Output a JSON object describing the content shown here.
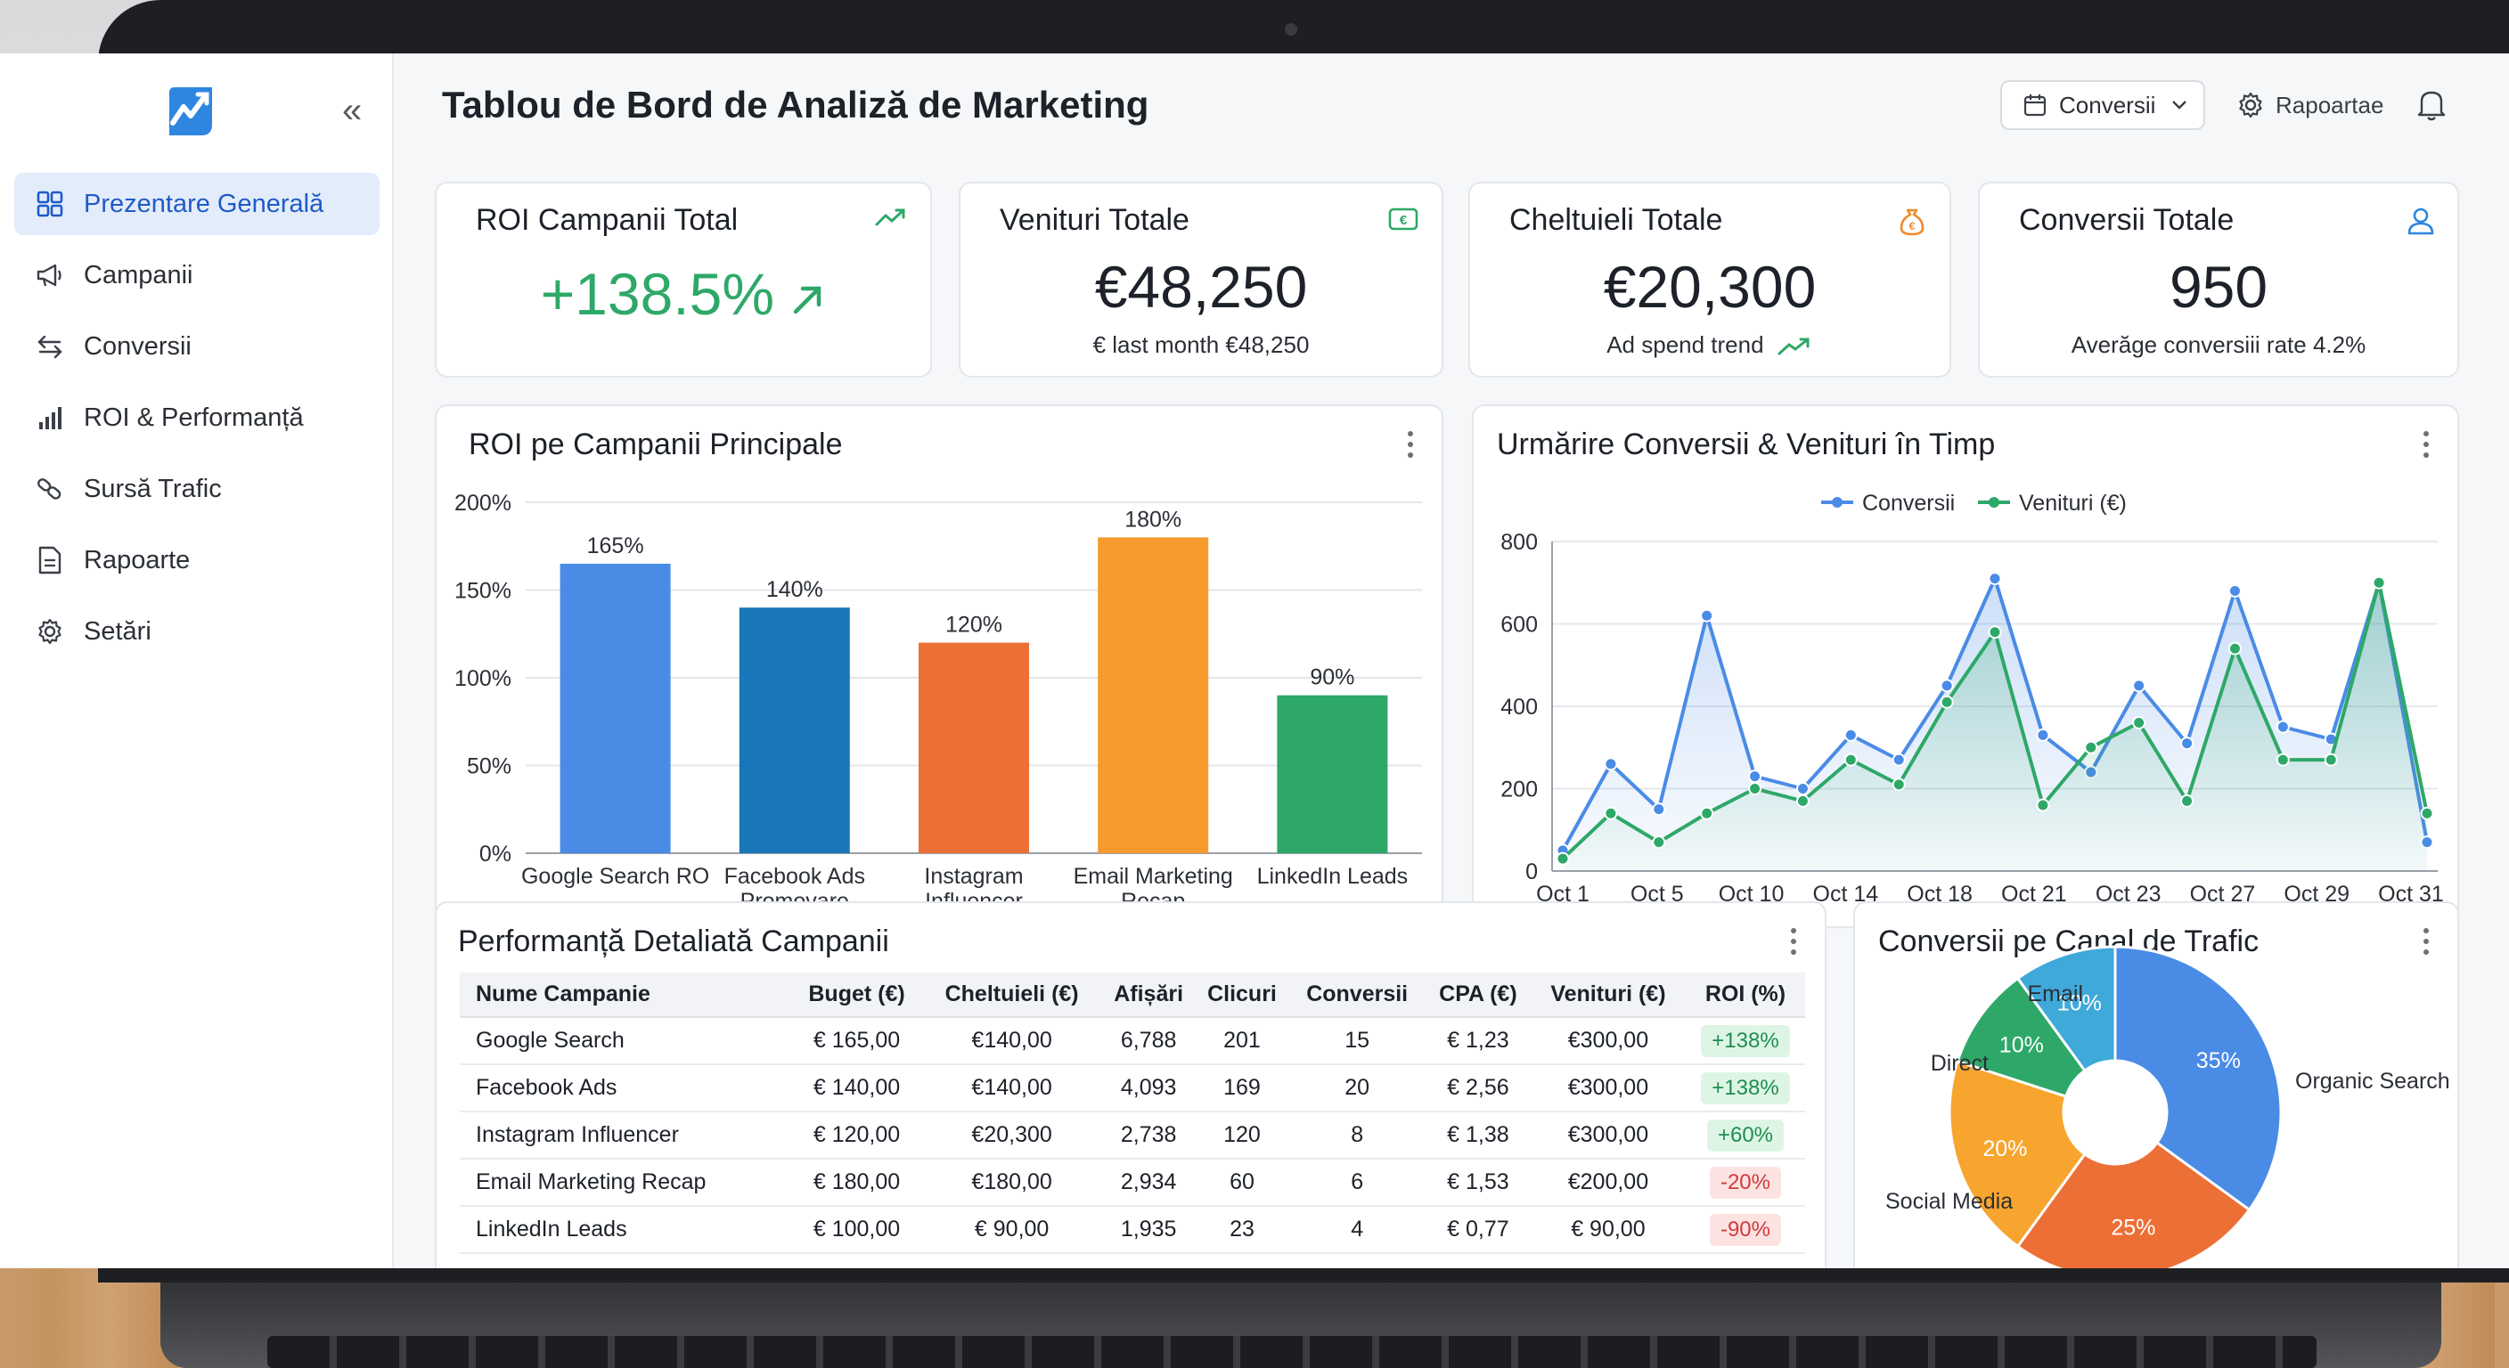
{
  "app": {
    "title": "Tablou de Bord de Analiză de Marketing",
    "filter_dropdown": "Conversii",
    "reports_button": "Rapoartae"
  },
  "sidebar": {
    "items": [
      {
        "label": "Prezentare Generală",
        "icon": "grid-icon",
        "active": true
      },
      {
        "label": "Campanii",
        "icon": "megaphone-icon",
        "active": false
      },
      {
        "label": "Conversii",
        "icon": "arrows-icon",
        "active": false
      },
      {
        "label": "ROI & Performanță",
        "icon": "bar-chart-icon",
        "active": false
      },
      {
        "label": "Sursă Trafic",
        "icon": "link-icon",
        "active": false
      },
      {
        "label": "Rapoarte",
        "icon": "document-icon",
        "active": false
      },
      {
        "label": "Setări",
        "icon": "gear-icon",
        "active": false
      }
    ]
  },
  "kpis": [
    {
      "title": "ROI Campanii Total",
      "value": "+138.5%",
      "sub": "",
      "icon": "trend-up-icon"
    },
    {
      "title": "Venituri Totale",
      "value": "€48,250",
      "sub": "€ last month €48,250",
      "icon": "money-icon"
    },
    {
      "title": "Cheltuieli Totale",
      "value": "€20,300",
      "sub": "Ad spend trend",
      "icon": "money-bag-icon"
    },
    {
      "title": "Conversii Totale",
      "value": "950",
      "sub": "Averăge conversiii rate 4.2%",
      "icon": "user-icon"
    }
  ],
  "colors": {
    "blue": "#4a8be6",
    "green": "#2ea868",
    "accent": "#1f5bc7"
  },
  "chart_data": [
    {
      "type": "bar",
      "title": "ROI pe Campanii Principale",
      "categories": [
        "Google Search RO",
        "Facebook Ads Promovare",
        "Instagram Influencer",
        "Email Marketing Recap",
        "LinkedIn Leads"
      ],
      "category_lines": [
        [
          "Google Search RO"
        ],
        [
          "Facebook Ads",
          "Promovare"
        ],
        [
          "Instagram",
          "Influencer"
        ],
        [
          "Email Marketing",
          "Recap"
        ],
        [
          "LinkedIn Leads"
        ]
      ],
      "values": [
        165,
        140,
        120,
        180,
        90
      ],
      "data_labels": [
        "165%",
        "140%",
        "120%",
        "180%",
        "90%"
      ],
      "bar_colors": [
        "#4a8be6",
        "#1976b8",
        "#ec6f36",
        "#f79b2e",
        "#2ea868"
      ],
      "yticks": [
        "0%",
        "50%",
        "100%",
        "150%",
        "200%"
      ],
      "ylim": [
        0,
        200
      ]
    },
    {
      "type": "area",
      "title": "Urmărire Conversii & Venituri în Timp",
      "x_ticks": [
        "Oct 1",
        "Oct 5",
        "Oct 10",
        "Oct 14",
        "Oct 18",
        "Oct 21",
        "Oct 23",
        "Oct 27",
        "Oct 29",
        "Oct 31"
      ],
      "yticks": [
        "0",
        "200",
        "400",
        "600",
        "800"
      ],
      "ylim": [
        0,
        800
      ],
      "legend_position": "top",
      "series": [
        {
          "name": "Conversii",
          "color": "#4a8be6",
          "values": [
            50,
            260,
            150,
            620,
            230,
            200,
            330,
            270,
            450,
            710,
            330,
            240,
            450,
            310,
            680,
            350,
            320,
            700,
            70
          ]
        },
        {
          "name": "Venituri (€)",
          "color": "#2ea868",
          "values": [
            30,
            140,
            70,
            140,
            200,
            170,
            270,
            210,
            410,
            580,
            160,
            300,
            360,
            170,
            540,
            270,
            270,
            700,
            140
          ]
        }
      ]
    },
    {
      "type": "pie",
      "title": "Conversii pe Canal de Trafic",
      "slices": [
        {
          "name": "Organic Search",
          "value": 35,
          "label": "35%",
          "color": "#4a8be6"
        },
        {
          "name": "",
          "value": 25,
          "label": "25%",
          "color": "#ec6f36"
        },
        {
          "name": "Social Media",
          "value": 20,
          "label": "20%",
          "color": "#f7a52e"
        },
        {
          "name": "Direct",
          "value": 10,
          "label": "10%",
          "color": "#2ea868"
        },
        {
          "name": "Email",
          "value": 10,
          "label": "10%",
          "color": "#3fa9d9"
        }
      ]
    }
  ],
  "table": {
    "title": "Performanță Detaliată Campanii",
    "headers": [
      "Nume Campanie",
      "Buget (€)",
      "Cheltuieli (€)",
      "Afișări",
      "Clicuri",
      "Conversii",
      "CPA (€)",
      "Venituri (€)",
      "ROI (%)"
    ],
    "rows": [
      [
        "Google Search",
        "€ 165,00",
        "€140,00",
        "6,788",
        "201",
        "15",
        "€ 1,23",
        "€300,00",
        "+138%"
      ],
      [
        "Facebook Ads",
        "€ 140,00",
        "€140,00",
        "4,093",
        "169",
        "20",
        "€ 2,56",
        "€300,00",
        "+138%"
      ],
      [
        "Instagram Influencer",
        "€ 120,00",
        "€20,300",
        "2,738",
        "120",
        "8",
        "€ 1,38",
        "€300,00",
        "+60%"
      ],
      [
        "Email Marketing Recap",
        "€ 180,00",
        "€180,00",
        "2,934",
        "60",
        "6",
        "€ 1,53",
        "€200,00",
        "-20%"
      ],
      [
        "LinkedIn Leads",
        "€ 100,00",
        "€ 90,00",
        "1,935",
        "23",
        "4",
        "€ 0,77",
        "€ 90,00",
        "-90%"
      ]
    ]
  }
}
